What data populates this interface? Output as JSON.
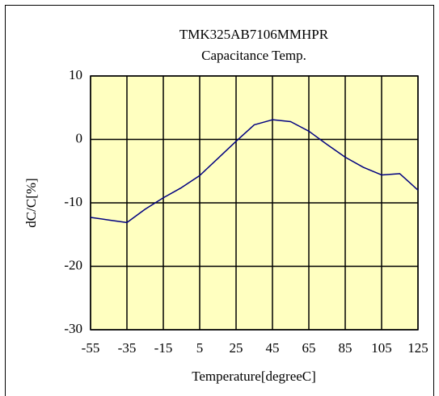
{
  "chart_data": {
    "type": "line",
    "title": "TMK325AB7106MMHPR",
    "subtitle": "Capacitance Temp.",
    "x_label": "Temperature[degreeC]",
    "y_label": "dC/C[%]",
    "x": [
      -55,
      -45,
      -35,
      -25,
      -15,
      -5,
      5,
      15,
      25,
      35,
      45,
      55,
      65,
      75,
      85,
      95,
      105,
      115,
      125
    ],
    "series": [
      {
        "name": "dC/C",
        "color": "#000080",
        "values": [
          -12.3,
          -12.7,
          -13.1,
          -11,
          -9.2,
          -7.6,
          -5.7,
          -3,
          -0.3,
          2.3,
          3.1,
          2.8,
          1.3,
          -0.8,
          -2.8,
          -4.4,
          -5.6,
          -5.4,
          -8
        ]
      }
    ],
    "xlim": [
      -55,
      125
    ],
    "xticks": [
      -55,
      -35,
      -15,
      5,
      25,
      45,
      65,
      85,
      105,
      125
    ],
    "ylim": [
      -30,
      10
    ],
    "yticks": [
      -30,
      -20,
      -10,
      0,
      10
    ],
    "grid": true,
    "plot_background": "#ffffc0"
  }
}
